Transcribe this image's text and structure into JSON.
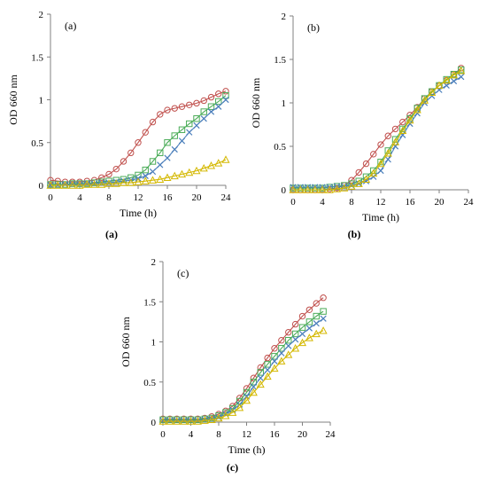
{
  "chart_data": [
    {
      "type": "line",
      "panel_tag": "(a)",
      "caption": "(a)",
      "xlabel": "Time (h)",
      "ylabel": "OD 660 nm",
      "xlim": [
        0,
        24
      ],
      "ylim": [
        0,
        2
      ],
      "xticks": [
        0,
        4,
        8,
        12,
        16,
        20,
        24
      ],
      "yticks": [
        0,
        0.5,
        1,
        1.5,
        2
      ],
      "ytick_labels": [
        "0",
        "0.5",
        "1",
        "1.5",
        "2"
      ],
      "series": [
        {
          "color": "#c0504d",
          "marker": "circle",
          "x": [
            0,
            1,
            2,
            3,
            4,
            5,
            6,
            7,
            8,
            9,
            10,
            11,
            12,
            13,
            14,
            15,
            16,
            17,
            18,
            19,
            20,
            21,
            22,
            23,
            24
          ],
          "y": [
            0.06,
            0.05,
            0.04,
            0.04,
            0.04,
            0.05,
            0.06,
            0.09,
            0.13,
            0.19,
            0.28,
            0.38,
            0.5,
            0.62,
            0.74,
            0.83,
            0.88,
            0.9,
            0.92,
            0.94,
            0.96,
            0.99,
            1.03,
            1.07,
            1.1
          ]
        },
        {
          "color": "#4bac58",
          "marker": "square",
          "x": [
            0,
            1,
            2,
            3,
            4,
            5,
            6,
            7,
            8,
            9,
            10,
            11,
            12,
            13,
            14,
            15,
            16,
            17,
            18,
            19,
            20,
            21,
            22,
            23,
            24
          ],
          "y": [
            0.01,
            0.01,
            0.01,
            0.02,
            0.02,
            0.02,
            0.03,
            0.04,
            0.05,
            0.06,
            0.07,
            0.09,
            0.12,
            0.18,
            0.28,
            0.38,
            0.5,
            0.58,
            0.65,
            0.72,
            0.78,
            0.86,
            0.92,
            0.98,
            1.05
          ]
        },
        {
          "color": "#4a7ebb",
          "marker": "cross",
          "x": [
            0,
            1,
            2,
            3,
            4,
            5,
            6,
            7,
            8,
            9,
            10,
            11,
            12,
            13,
            14,
            15,
            16,
            17,
            18,
            19,
            20,
            21,
            22,
            23,
            24
          ],
          "y": [
            0.0,
            0.0,
            0.01,
            0.01,
            0.01,
            0.02,
            0.02,
            0.03,
            0.03,
            0.04,
            0.05,
            0.06,
            0.08,
            0.11,
            0.16,
            0.24,
            0.32,
            0.42,
            0.52,
            0.62,
            0.7,
            0.78,
            0.86,
            0.92,
            1.0
          ]
        },
        {
          "color": "#d4b800",
          "marker": "triangle",
          "x": [
            0,
            1,
            2,
            3,
            4,
            5,
            6,
            7,
            8,
            9,
            10,
            11,
            12,
            13,
            14,
            15,
            16,
            17,
            18,
            19,
            20,
            21,
            22,
            23,
            24
          ],
          "y": [
            0.0,
            0.0,
            0.0,
            0.0,
            0.0,
            0.01,
            0.01,
            0.01,
            0.02,
            0.02,
            0.03,
            0.03,
            0.04,
            0.05,
            0.06,
            0.07,
            0.09,
            0.11,
            0.13,
            0.15,
            0.17,
            0.2,
            0.23,
            0.26,
            0.3
          ]
        }
      ]
    },
    {
      "type": "line",
      "panel_tag": "(b)",
      "caption": "(b)",
      "xlabel": "Time (h)",
      "ylabel": "OD 660 nm",
      "xlim": [
        0,
        24
      ],
      "ylim": [
        0,
        2
      ],
      "xticks": [
        0,
        4,
        8,
        12,
        16,
        20,
        24
      ],
      "yticks": [
        0,
        0.5,
        1,
        1.5,
        2
      ],
      "ytick_labels": [
        "0",
        "0.5",
        "1",
        "1.5",
        "2"
      ],
      "series": [
        {
          "color": "#c0504d",
          "marker": "circle",
          "x": [
            0,
            1,
            2,
            3,
            4,
            5,
            6,
            7,
            8,
            9,
            10,
            11,
            12,
            13,
            14,
            15,
            16,
            17,
            18,
            19,
            20,
            21,
            22,
            23
          ],
          "y": [
            0.0,
            0.0,
            0.0,
            0.0,
            0.0,
            0.01,
            0.02,
            0.05,
            0.11,
            0.2,
            0.3,
            0.41,
            0.52,
            0.62,
            0.7,
            0.78,
            0.86,
            0.95,
            1.05,
            1.13,
            1.2,
            1.26,
            1.33,
            1.4
          ]
        },
        {
          "color": "#4bac58",
          "marker": "square",
          "x": [
            0,
            1,
            2,
            3,
            4,
            5,
            6,
            7,
            8,
            9,
            10,
            11,
            12,
            13,
            14,
            15,
            16,
            17,
            18,
            19,
            20,
            21,
            22,
            23
          ],
          "y": [
            0.02,
            0.02,
            0.02,
            0.02,
            0.02,
            0.03,
            0.04,
            0.05,
            0.07,
            0.1,
            0.15,
            0.22,
            0.32,
            0.45,
            0.58,
            0.7,
            0.82,
            0.94,
            1.05,
            1.13,
            1.2,
            1.27,
            1.33,
            1.38
          ]
        },
        {
          "color": "#4a7ebb",
          "marker": "cross",
          "x": [
            0,
            1,
            2,
            3,
            4,
            5,
            6,
            7,
            8,
            9,
            10,
            11,
            12,
            13,
            14,
            15,
            16,
            17,
            18,
            19,
            20,
            21,
            22,
            23
          ],
          "y": [
            0.03,
            0.03,
            0.03,
            0.03,
            0.03,
            0.03,
            0.04,
            0.04,
            0.05,
            0.07,
            0.1,
            0.15,
            0.22,
            0.35,
            0.5,
            0.63,
            0.76,
            0.88,
            1.0,
            1.08,
            1.15,
            1.2,
            1.25,
            1.3
          ]
        },
        {
          "color": "#d4b800",
          "marker": "triangle",
          "x": [
            0,
            1,
            2,
            3,
            4,
            5,
            6,
            7,
            8,
            9,
            10,
            11,
            12,
            13,
            14,
            15,
            16,
            17,
            18,
            19,
            20,
            21,
            22,
            23
          ],
          "y": [
            0.0,
            0.0,
            0.0,
            0.0,
            0.0,
            0.0,
            0.01,
            0.02,
            0.04,
            0.07,
            0.12,
            0.19,
            0.3,
            0.42,
            0.55,
            0.68,
            0.8,
            0.92,
            1.03,
            1.12,
            1.2,
            1.26,
            1.32,
            1.37
          ]
        }
      ]
    },
    {
      "type": "line",
      "panel_tag": "(c)",
      "caption": "(c)",
      "xlabel": "Time (h)",
      "ylabel": "OD 660 nm",
      "xlim": [
        0,
        24
      ],
      "ylim": [
        0,
        2
      ],
      "xticks": [
        0,
        4,
        8,
        12,
        16,
        20,
        24
      ],
      "yticks": [
        0,
        0.5,
        1,
        1.5,
        2
      ],
      "ytick_labels": [
        "0",
        "0.5",
        "1",
        "1.5",
        "2"
      ],
      "series": [
        {
          "color": "#c0504d",
          "marker": "circle",
          "x": [
            0,
            1,
            2,
            3,
            4,
            5,
            6,
            7,
            8,
            9,
            10,
            11,
            12,
            13,
            14,
            15,
            16,
            17,
            18,
            19,
            20,
            21,
            22,
            23
          ],
          "y": [
            0.04,
            0.04,
            0.04,
            0.04,
            0.04,
            0.04,
            0.05,
            0.07,
            0.1,
            0.14,
            0.2,
            0.3,
            0.42,
            0.55,
            0.68,
            0.8,
            0.92,
            1.02,
            1.12,
            1.22,
            1.32,
            1.4,
            1.48,
            1.55
          ]
        },
        {
          "color": "#4bac58",
          "marker": "square",
          "x": [
            0,
            1,
            2,
            3,
            4,
            5,
            6,
            7,
            8,
            9,
            10,
            11,
            12,
            13,
            14,
            15,
            16,
            17,
            18,
            19,
            20,
            21,
            22,
            23
          ],
          "y": [
            0.03,
            0.03,
            0.03,
            0.03,
            0.03,
            0.03,
            0.04,
            0.05,
            0.08,
            0.12,
            0.17,
            0.26,
            0.37,
            0.5,
            0.62,
            0.72,
            0.82,
            0.92,
            1.02,
            1.1,
            1.18,
            1.25,
            1.32,
            1.38
          ]
        },
        {
          "color": "#4a7ebb",
          "marker": "cross",
          "x": [
            0,
            1,
            2,
            3,
            4,
            5,
            6,
            7,
            8,
            9,
            10,
            11,
            12,
            13,
            14,
            15,
            16,
            17,
            18,
            19,
            20,
            21,
            22,
            23
          ],
          "y": [
            0.02,
            0.02,
            0.02,
            0.02,
            0.02,
            0.02,
            0.03,
            0.04,
            0.06,
            0.1,
            0.15,
            0.22,
            0.32,
            0.44,
            0.55,
            0.65,
            0.76,
            0.86,
            0.95,
            1.03,
            1.1,
            1.17,
            1.23,
            1.29
          ]
        },
        {
          "color": "#d4b800",
          "marker": "triangle",
          "x": [
            0,
            1,
            2,
            3,
            4,
            5,
            6,
            7,
            8,
            9,
            10,
            11,
            12,
            13,
            14,
            15,
            16,
            17,
            18,
            19,
            20,
            21,
            22,
            23
          ],
          "y": [
            0.01,
            0.01,
            0.01,
            0.01,
            0.01,
            0.01,
            0.02,
            0.03,
            0.05,
            0.08,
            0.12,
            0.18,
            0.27,
            0.37,
            0.47,
            0.57,
            0.67,
            0.76,
            0.84,
            0.92,
            0.99,
            1.05,
            1.1,
            1.14
          ]
        }
      ]
    }
  ]
}
